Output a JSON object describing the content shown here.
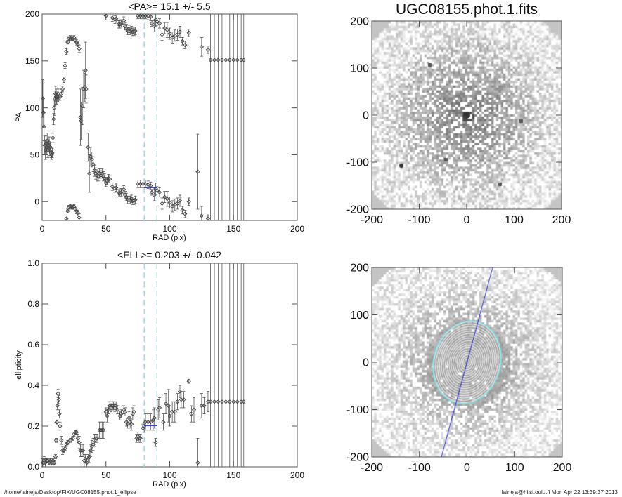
{
  "colors": {
    "axis": "#555555",
    "marker": "#444444",
    "cyan": "#7fe3ea",
    "blue": "#2a2ad0"
  },
  "footer": {
    "path": "/home/laineja/Desktop/FIX/UGC08155.phot.1_ellipse",
    "user_time": "laineja@hiisi.oulu.fi  Mon Apr 22 13:39:37 2013"
  },
  "chart_data": [
    {
      "type": "scatter",
      "id": "pa",
      "title": "<PA>=  15.1 +/-   5.5",
      "xlabel": "RAD (pix)",
      "ylabel": "PA",
      "xlim": [
        0,
        200
      ],
      "ylim": [
        -20,
        200
      ],
      "xticks": [
        0,
        50,
        100,
        150,
        200
      ],
      "yticks": [
        0,
        50,
        100,
        150,
        200
      ],
      "fit_range": [
        80,
        90
      ],
      "mean": 15.1,
      "err": 5.5,
      "wrap": 180,
      "points": [
        [
          0.5,
          110,
          20
        ],
        [
          1,
          95,
          15
        ],
        [
          1.5,
          80,
          15
        ],
        [
          2,
          60,
          10
        ],
        [
          2.5,
          55,
          10
        ],
        [
          3,
          62,
          8
        ],
        [
          3.5,
          58,
          8
        ],
        [
          4,
          65,
          8
        ],
        [
          4.5,
          55,
          8
        ],
        [
          5,
          60,
          6
        ],
        [
          5.5,
          63,
          6
        ],
        [
          6,
          55,
          6
        ],
        [
          6.5,
          58,
          5
        ],
        [
          7,
          52,
          5
        ],
        [
          7.5,
          50,
          5
        ],
        [
          8,
          52,
          5
        ],
        [
          8.5,
          68,
          5
        ],
        [
          9,
          88,
          6
        ],
        [
          9.5,
          100,
          8
        ],
        [
          10,
          110,
          8
        ],
        [
          10.5,
          115,
          8
        ],
        [
          11,
          112,
          8
        ],
        [
          11.5,
          110,
          6
        ],
        [
          12,
          112,
          5
        ],
        [
          12.5,
          115,
          5
        ],
        [
          13,
          110,
          4
        ],
        [
          14,
          112,
          4
        ],
        [
          15,
          115,
          3
        ],
        [
          16,
          120,
          3
        ],
        [
          17,
          130,
          3
        ],
        [
          18,
          145,
          3
        ],
        [
          19,
          160,
          3
        ],
        [
          20,
          170,
          2
        ],
        [
          21,
          174,
          2
        ],
        [
          22,
          175,
          2
        ],
        [
          23,
          174,
          2
        ],
        [
          24,
          174,
          2
        ],
        [
          25,
          175,
          2
        ],
        [
          26,
          172,
          2
        ],
        [
          27,
          170,
          3
        ],
        [
          28,
          168,
          3
        ],
        [
          29,
          163,
          4
        ],
        [
          30,
          90,
          30
        ],
        [
          30.5,
          86,
          20
        ],
        [
          31.5,
          102,
          20
        ],
        [
          32.5,
          120,
          20
        ],
        [
          33.5,
          122,
          15
        ],
        [
          34,
          140,
          30
        ],
        [
          34.5,
          120,
          15
        ],
        [
          36,
          58,
          15
        ],
        [
          37,
          30,
          20
        ],
        [
          38,
          48,
          10
        ],
        [
          39,
          45,
          8
        ],
        [
          40,
          40,
          8
        ],
        [
          41,
          33,
          6
        ],
        [
          42,
          30,
          6
        ],
        [
          43,
          28,
          6
        ],
        [
          44,
          27,
          5
        ],
        [
          45,
          30,
          5
        ],
        [
          46,
          28,
          5
        ],
        [
          47,
          30,
          5
        ],
        [
          48,
          27,
          5
        ],
        [
          49,
          25,
          5
        ],
        [
          50,
          20,
          4
        ],
        [
          51,
          22,
          4
        ],
        [
          52,
          25,
          4
        ],
        [
          53,
          24,
          4
        ],
        [
          55,
          16,
          4
        ],
        [
          57,
          14,
          4
        ],
        [
          58,
          15,
          4
        ],
        [
          60,
          9,
          4
        ],
        [
          61,
          9,
          4
        ],
        [
          62,
          10,
          4
        ],
        [
          64,
          13,
          4
        ],
        [
          65,
          7,
          4
        ],
        [
          66,
          5,
          4
        ],
        [
          67,
          2,
          4
        ],
        [
          68,
          4,
          4
        ],
        [
          69,
          2,
          4
        ],
        [
          70,
          3,
          4
        ],
        [
          71,
          1,
          4
        ],
        [
          72,
          1,
          4
        ],
        [
          73,
          2,
          4
        ],
        [
          75,
          19,
          4
        ],
        [
          77,
          19,
          4
        ],
        [
          79,
          19,
          4
        ],
        [
          81,
          19,
          4
        ],
        [
          83,
          18,
          4
        ],
        [
          85,
          17,
          4
        ],
        [
          86,
          10,
          3
        ],
        [
          88,
          7,
          6
        ],
        [
          89,
          14,
          6
        ],
        [
          90,
          12,
          4
        ],
        [
          92,
          10,
          5
        ],
        [
          94,
          -2,
          6
        ],
        [
          96,
          5,
          6
        ],
        [
          98,
          3,
          8
        ],
        [
          100,
          -1,
          6
        ],
        [
          102,
          -5,
          6
        ],
        [
          104,
          -3,
          6
        ],
        [
          106,
          -2,
          6
        ],
        [
          108,
          1,
          6
        ],
        [
          110,
          -9,
          4
        ],
        [
          112,
          -13,
          4
        ],
        [
          115,
          0,
          4
        ],
        [
          122,
          32,
          40
        ],
        [
          125,
          -15,
          10
        ],
        [
          130,
          -18,
          4
        ],
        [
          132,
          151,
          200
        ],
        [
          135,
          151,
          200
        ],
        [
          138,
          151,
          200
        ],
        [
          141,
          151,
          200
        ],
        [
          144,
          151,
          200
        ],
        [
          147,
          151,
          200
        ],
        [
          150,
          151,
          200
        ],
        [
          153,
          151,
          200
        ],
        [
          156,
          151,
          200
        ],
        [
          158,
          151,
          200
        ]
      ]
    },
    {
      "type": "scatter",
      "id": "ell",
      "title": "<ELL>= 0.203 +/-  0.042",
      "xlabel": "RAD (pix)",
      "ylabel": "ellipticity",
      "xlim": [
        0,
        200
      ],
      "ylim": [
        0,
        1
      ],
      "xticks": [
        0,
        50,
        100,
        150,
        200
      ],
      "yticks": [
        0.0,
        0.2,
        0.4,
        0.6,
        0.8,
        1.0
      ],
      "fit_range": [
        80,
        90
      ],
      "mean": 0.203,
      "err": 0.042,
      "points": [
        [
          0.5,
          0.02,
          0.02
        ],
        [
          1.5,
          0.03,
          0.02
        ],
        [
          2.5,
          0.02,
          0.02
        ],
        [
          3.5,
          0.03,
          0.01
        ],
        [
          4.5,
          0.03,
          0.01
        ],
        [
          5.5,
          0.02,
          0.01
        ],
        [
          6.5,
          0.03,
          0.01
        ],
        [
          7.5,
          0.02,
          0.01
        ],
        [
          8.5,
          0.03,
          0.01
        ],
        [
          9.5,
          0.02,
          0.01
        ],
        [
          10.5,
          0.05,
          0.01
        ],
        [
          11,
          0.13,
          0.01
        ],
        [
          11.5,
          0.22,
          0.01
        ],
        [
          12,
          0.3,
          0.02
        ],
        [
          12.5,
          0.36,
          0.02
        ],
        [
          13,
          0.33,
          0.02
        ],
        [
          13.5,
          0.26,
          0.02
        ],
        [
          14,
          0.2,
          0.02
        ],
        [
          15,
          0.13,
          0.02
        ],
        [
          16,
          0.08,
          0.02
        ],
        [
          17,
          0.08,
          0.01
        ],
        [
          18,
          0.09,
          0.01
        ],
        [
          19,
          0.11,
          0.01
        ],
        [
          20,
          0.12,
          0.01
        ],
        [
          22,
          0.13,
          0.01
        ],
        [
          24,
          0.14,
          0.01
        ],
        [
          25,
          0.16,
          0.01
        ],
        [
          26,
          0.17,
          0.01
        ],
        [
          27,
          0.17,
          0.01
        ],
        [
          28,
          0.14,
          0.02
        ],
        [
          29,
          0.12,
          0.03
        ],
        [
          30,
          0.08,
          0.03
        ],
        [
          31,
          0.08,
          0.03
        ],
        [
          32,
          0.08,
          0.03
        ],
        [
          33,
          0.03,
          0.03
        ],
        [
          34,
          0.04,
          0.02
        ],
        [
          35,
          0.02,
          0.02
        ],
        [
          36,
          0.04,
          0.02
        ],
        [
          37,
          0.05,
          0.03
        ],
        [
          38,
          0.08,
          0.03
        ],
        [
          39,
          0.1,
          0.03
        ],
        [
          40,
          0.11,
          0.03
        ],
        [
          41,
          0.13,
          0.03
        ],
        [
          42,
          0.14,
          0.02
        ],
        [
          43,
          0.14,
          0.02
        ],
        [
          45,
          0.18,
          0.04
        ],
        [
          46,
          0.18,
          0.04
        ],
        [
          47,
          0.18,
          0.04
        ],
        [
          48,
          0.18,
          0.04
        ],
        [
          50,
          0.27,
          0.02
        ],
        [
          51,
          0.25,
          0.03
        ],
        [
          52,
          0.28,
          0.02
        ],
        [
          53,
          0.3,
          0.02
        ],
        [
          54,
          0.29,
          0.02
        ],
        [
          55,
          0.3,
          0.02
        ],
        [
          56,
          0.3,
          0.02
        ],
        [
          57,
          0.29,
          0.02
        ],
        [
          58,
          0.3,
          0.02
        ],
        [
          59,
          0.28,
          0.02
        ],
        [
          61,
          0.25,
          0.02
        ],
        [
          62,
          0.26,
          0.02
        ],
        [
          64,
          0.28,
          0.02
        ],
        [
          65,
          0.27,
          0.02
        ],
        [
          66,
          0.22,
          0.02
        ],
        [
          67,
          0.21,
          0.02
        ],
        [
          68,
          0.24,
          0.03
        ],
        [
          69,
          0.22,
          0.03
        ],
        [
          70,
          0.21,
          0.03
        ],
        [
          71,
          0.26,
          0.03
        ],
        [
          72,
          0.27,
          0.03
        ],
        [
          74,
          0.14,
          0.02
        ],
        [
          75,
          0.15,
          0.02
        ],
        [
          76,
          0.14,
          0.02
        ],
        [
          77,
          0.14,
          0.02
        ],
        [
          79,
          0.19,
          0.02
        ],
        [
          80,
          0.2,
          0.03
        ],
        [
          81,
          0.22,
          0.04
        ],
        [
          83,
          0.22,
          0.04
        ],
        [
          85,
          0.22,
          0.04
        ],
        [
          87,
          0.23,
          0.05
        ],
        [
          88,
          0.24,
          0.05
        ],
        [
          89,
          0.12,
          0.02
        ],
        [
          91,
          0.28,
          0.05
        ],
        [
          92,
          0.29,
          0.05
        ],
        [
          95,
          0.22,
          0.04
        ],
        [
          97,
          0.31,
          0.05
        ],
        [
          99,
          0.3,
          0.08
        ],
        [
          100,
          0.25,
          0.05
        ],
        [
          102,
          0.27,
          0.05
        ],
        [
          104,
          0.27,
          0.05
        ],
        [
          106,
          0.32,
          0.04
        ],
        [
          108,
          0.37,
          0.03
        ],
        [
          109,
          0.33,
          0.04
        ],
        [
          111,
          0.33,
          0.04
        ],
        [
          115,
          0.42,
          0.01
        ],
        [
          117,
          0.26,
          0.04
        ],
        [
          119,
          0.28,
          0.06
        ],
        [
          122,
          0.02,
          0.12
        ],
        [
          125,
          0.3,
          0.06
        ],
        [
          127,
          0.3,
          0.04
        ],
        [
          130,
          0.32,
          0.05
        ],
        [
          132,
          0.32,
          1.2
        ],
        [
          135,
          0.32,
          1.2
        ],
        [
          138,
          0.32,
          1.2
        ],
        [
          141,
          0.32,
          1.2
        ],
        [
          144,
          0.32,
          1.2
        ],
        [
          147,
          0.32,
          1.2
        ],
        [
          150,
          0.32,
          1.2
        ],
        [
          153,
          0.32,
          1.2
        ],
        [
          156,
          0.32,
          1.2
        ],
        [
          158,
          0.32,
          1.2
        ]
      ]
    },
    {
      "type": "heatmap",
      "id": "image",
      "title": "UGC08155.phot.1.fits",
      "xlim": [
        -200,
        200
      ],
      "ylim": [
        -200,
        200
      ],
      "xticks": [
        -200,
        -100,
        0,
        100,
        200
      ],
      "yticks": [
        -200,
        -100,
        0,
        100,
        200
      ]
    },
    {
      "type": "heatmap",
      "id": "model",
      "title": "",
      "xlim": [
        -200,
        200
      ],
      "ylim": [
        -200,
        200
      ],
      "xticks": [
        -200,
        -100,
        0,
        100,
        200
      ],
      "yticks": [
        -200,
        -100,
        0,
        100,
        200
      ],
      "pa_deg": 15.1,
      "ellipse_semi_major": 88,
      "ellipticity": 0.203
    }
  ]
}
